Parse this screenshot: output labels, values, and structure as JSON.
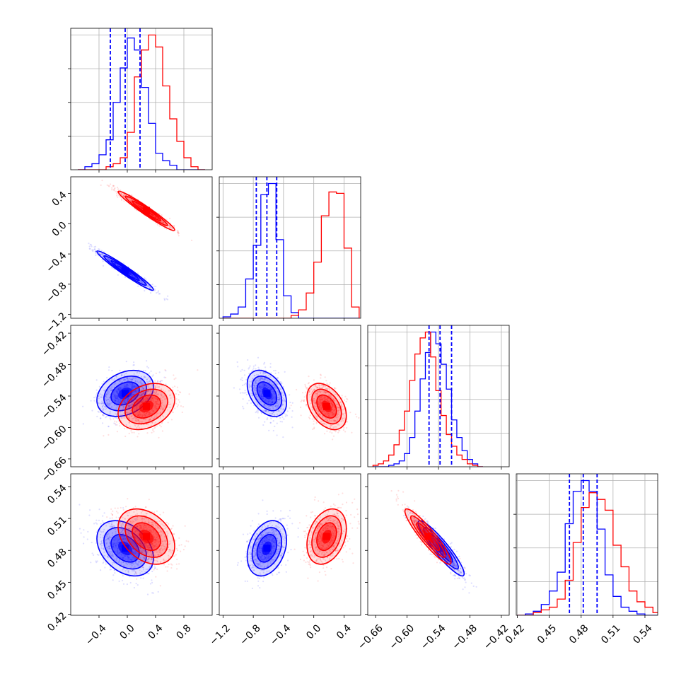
{
  "chart_data": {
    "type": "corner",
    "grid": true,
    "series_colors": {
      "blue": "#0000ff",
      "red": "#ff0000"
    },
    "axes": [
      {
        "ticks": [
          -0.4,
          0.0,
          0.4,
          0.8
        ],
        "tick_labels": [
          "−0.4",
          "0.0",
          "0.4",
          "0.8"
        ],
        "range": [
          -0.8,
          1.2
        ]
      },
      {
        "ticks": [
          -1.2,
          -0.8,
          -0.4,
          0.0,
          0.4
        ],
        "tick_labels": [
          "−1.2",
          "−0.8",
          "−0.4",
          "0.0",
          "0.4"
        ],
        "range": [
          -1.25,
          0.62
        ]
      },
      {
        "ticks": [
          -0.66,
          -0.6,
          -0.54,
          -0.48,
          -0.42
        ],
        "tick_labels": [
          "−0.66",
          "−0.60",
          "−0.54",
          "−0.48",
          "−0.42"
        ],
        "range": [
          -0.675,
          -0.405
        ]
      },
      {
        "ticks": [
          0.42,
          0.45,
          0.48,
          0.51,
          0.54
        ],
        "tick_labels": [
          "0.42",
          "0.45",
          "0.48",
          "0.51",
          "0.54"
        ],
        "range": [
          0.419,
          0.552
        ]
      }
    ],
    "distributions": {
      "blue": {
        "mean": [
          -0.03,
          -0.62,
          -0.535,
          0.482
        ],
        "std": [
          0.2,
          0.13,
          0.022,
          0.013
        ]
      },
      "red": {
        "mean": [
          0.27,
          0.17,
          -0.56,
          0.493
        ],
        "std": [
          0.2,
          0.13,
          0.022,
          0.013
        ]
      }
    },
    "correlations": {
      "1-0": {
        "blue": -0.97,
        "red": -0.97
      },
      "2-0": {
        "blue": 0.3,
        "red": 0.3
      },
      "2-1": {
        "blue": -0.4,
        "red": -0.4
      },
      "3-0": {
        "blue": -0.35,
        "red": -0.35
      },
      "3-1": {
        "blue": 0.3,
        "red": 0.3
      },
      "3-2": {
        "blue": -0.92,
        "red": -0.92
      }
    },
    "quantile_lines": {
      "color": "#0000ff",
      "style": "dashed",
      "values": [
        [
          -0.24,
          -0.03,
          0.18
        ],
        [
          -0.76,
          -0.62,
          -0.49
        ],
        [
          -0.558,
          -0.537,
          -0.515
        ],
        [
          0.469,
          0.482,
          0.495
        ]
      ]
    },
    "histograms": [
      {
        "bin_edges": [
          -0.7,
          -0.6,
          -0.5,
          -0.4,
          -0.3,
          -0.2,
          -0.1,
          0.0,
          0.1,
          0.2,
          0.3,
          0.4,
          0.5,
          0.6,
          0.7,
          0.8,
          0.9,
          1.0,
          1.1
        ],
        "blue": [
          0,
          2,
          4,
          10,
          20,
          45,
          68,
          88,
          80,
          55,
          31,
          11,
          6,
          3,
          0,
          0,
          0,
          0
        ],
        "red": [
          0,
          0,
          0,
          0,
          2,
          4,
          8,
          25,
          62,
          80,
          90,
          82,
          56,
          34,
          19,
          8,
          2,
          0
        ]
      },
      {
        "bin_edges": [
          -1.2,
          -1.1,
          -1.0,
          -0.9,
          -0.8,
          -0.7,
          -0.6,
          -0.5,
          -0.4,
          -0.3,
          -0.2,
          -0.1,
          0.0,
          0.1,
          0.2,
          0.3,
          0.4,
          0.5,
          0.6
        ],
        "blue": [
          1,
          3,
          8,
          28,
          52,
          88,
          96,
          56,
          16,
          4,
          0,
          0,
          0,
          0,
          0,
          0,
          0,
          0
        ],
        "red": [
          0,
          0,
          0,
          0,
          0,
          0,
          0,
          0,
          0,
          2,
          6,
          18,
          40,
          73,
          90,
          89,
          50,
          8
        ]
      },
      {
        "bin_edges": [
          -0.665,
          -0.655,
          -0.645,
          -0.635,
          -0.625,
          -0.615,
          -0.605,
          -0.595,
          -0.585,
          -0.575,
          -0.565,
          -0.555,
          -0.545,
          -0.535,
          -0.525,
          -0.515,
          -0.505,
          -0.495,
          -0.485,
          -0.475,
          -0.465,
          -0.455
        ],
        "blue": [
          0,
          0,
          0,
          1,
          2,
          4,
          9,
          20,
          38,
          60,
          78,
          92,
          84,
          70,
          53,
          32,
          20,
          11,
          5,
          2,
          0
        ],
        "red": [
          1,
          2,
          4,
          8,
          15,
          25,
          38,
          59,
          77,
          88,
          92,
          75,
          52,
          35,
          22,
          14,
          8,
          5,
          2,
          1,
          0
        ]
      },
      {
        "bin_edges": [
          0.42,
          0.4275,
          0.435,
          0.4425,
          0.45,
          0.4575,
          0.465,
          0.4725,
          0.48,
          0.4875,
          0.495,
          0.5025,
          0.51,
          0.5175,
          0.525,
          0.5325,
          0.54,
          0.5475,
          0.555
        ],
        "blue": [
          0,
          1,
          3,
          8,
          18,
          32,
          68,
          92,
          100,
          92,
          64,
          30,
          14,
          6,
          3,
          1,
          0,
          0
        ],
        "red": [
          0,
          0,
          2,
          4,
          6,
          12,
          26,
          54,
          80,
          91,
          86,
          78,
          52,
          36,
          18,
          10,
          6,
          2
        ]
      }
    ]
  }
}
